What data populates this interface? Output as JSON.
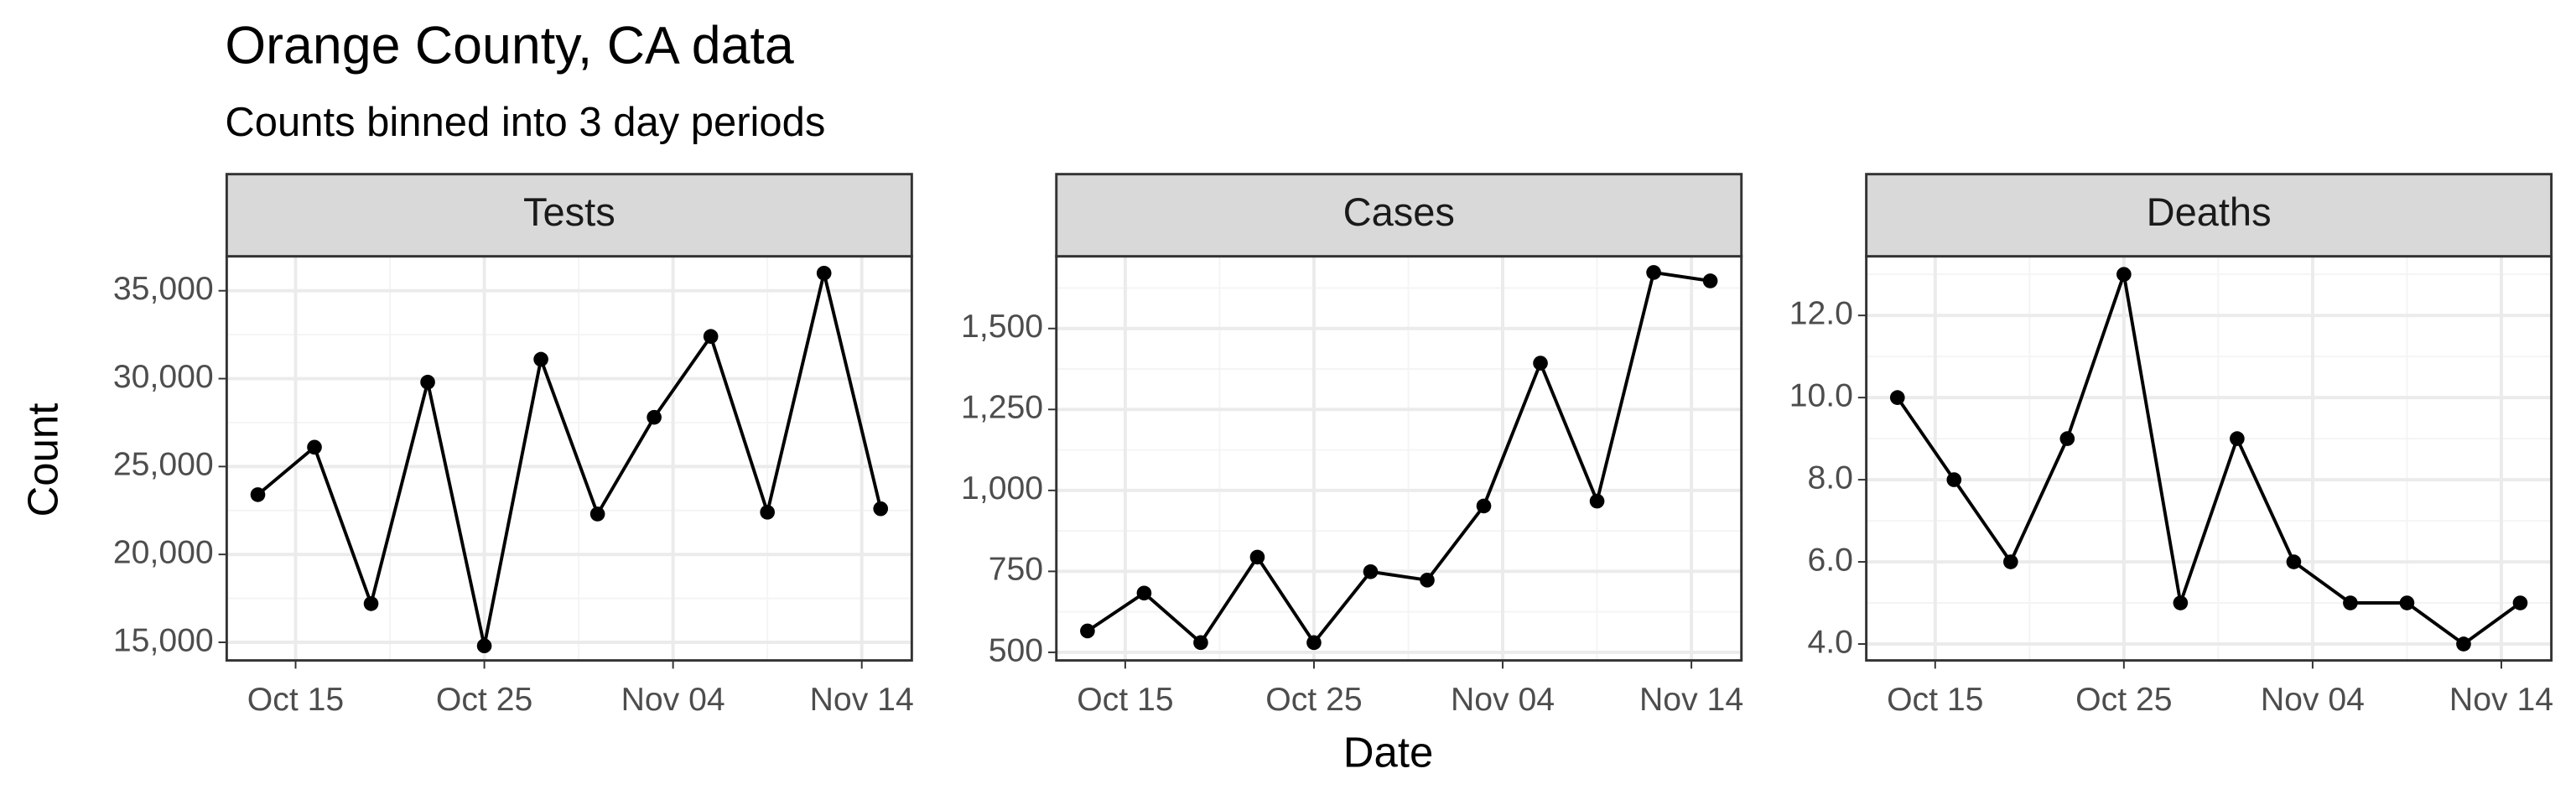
{
  "title": "Orange County, CA data",
  "subtitle": "Counts binned into 3 day periods",
  "x_label": "Date",
  "y_label": "Count",
  "chart_data": [
    {
      "type": "line",
      "title": "Tests",
      "x": [
        "Oct 13",
        "Oct 16",
        "Oct 19",
        "Oct 22",
        "Oct 25",
        "Oct 28",
        "Oct 31",
        "Nov 03",
        "Nov 06",
        "Nov 09",
        "Nov 12",
        "Nov 15"
      ],
      "series": [
        {
          "name": "Tests",
          "color": "#000000",
          "values": [
            23400,
            26100,
            17200,
            29800,
            14800,
            31100,
            22300,
            27800,
            32400,
            22400,
            36000,
            22600
          ]
        }
      ],
      "xticks": [
        "Oct 15",
        "Oct 25",
        "Nov 04",
        "Nov 14"
      ],
      "ylim": [
        13970,
        36960
      ],
      "yticks": [
        {
          "value": 15000,
          "label": "15,000"
        },
        {
          "value": 20000,
          "label": "20,000"
        },
        {
          "value": 25000,
          "label": "25,000"
        },
        {
          "value": 30000,
          "label": "30,000"
        },
        {
          "value": 35000,
          "label": "35,000"
        }
      ],
      "grid": true
    },
    {
      "type": "line",
      "title": "Cases",
      "x": [
        "Oct 13",
        "Oct 16",
        "Oct 19",
        "Oct 22",
        "Oct 25",
        "Oct 28",
        "Oct 31",
        "Nov 03",
        "Nov 06",
        "Nov 09",
        "Nov 12",
        "Nov 15"
      ],
      "series": [
        {
          "name": "Cases",
          "color": "#000000",
          "values": [
            566,
            683,
            530,
            794,
            530,
            749,
            723,
            952,
            1393,
            967,
            1673,
            1647
          ]
        }
      ],
      "xticks": [
        "Oct 15",
        "Oct 25",
        "Nov 04",
        "Nov 14"
      ],
      "ylim": [
        475,
        1723
      ],
      "yticks": [
        500,
        750,
        {
          "value": 1000,
          "label": "1,000"
        },
        {
          "value": 1250,
          "label": "1,250"
        },
        {
          "value": 1500,
          "label": "1,500"
        }
      ],
      "grid": true
    },
    {
      "type": "line",
      "title": "Deaths",
      "x": [
        "Oct 13",
        "Oct 16",
        "Oct 19",
        "Oct 22",
        "Oct 25",
        "Oct 28",
        "Oct 31",
        "Nov 03",
        "Nov 06",
        "Nov 09",
        "Nov 12",
        "Nov 15"
      ],
      "series": [
        {
          "name": "Deaths",
          "color": "#000000",
          "values": [
            10,
            8,
            6,
            9,
            13,
            5,
            9,
            6,
            5,
            5,
            4,
            5
          ]
        }
      ],
      "xticks": [
        "Oct 15",
        "Oct 25",
        "Nov 04",
        "Nov 14"
      ],
      "ylim": [
        3.6,
        13.44
      ],
      "yticks": [
        {
          "value": 4,
          "label": "4.0"
        },
        {
          "value": 6,
          "label": "6.0"
        },
        {
          "value": 8,
          "label": "8.0"
        },
        {
          "value": 10,
          "label": "10.0"
        },
        {
          "value": 12,
          "label": "12.0"
        }
      ],
      "grid": true
    }
  ]
}
